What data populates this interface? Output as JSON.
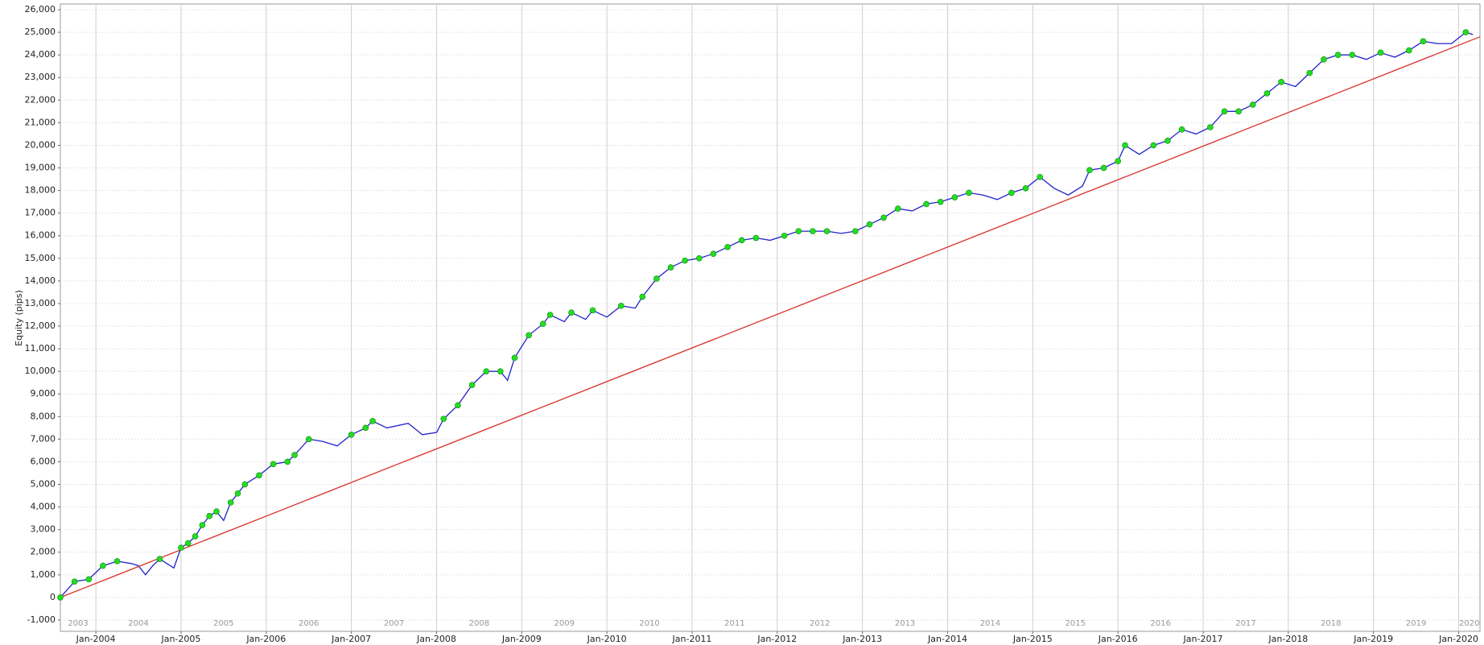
{
  "chart_data": {
    "type": "line",
    "y_label": "Equity (pips)",
    "x": [
      "2003-08",
      "2003-10",
      "2003-12",
      "2004-02",
      "2004-04",
      "2004-06",
      "2004-07",
      "2004-08",
      "2004-09",
      "2004-10",
      "2004-11",
      "2004-12",
      "2005-01",
      "2005-02",
      "2005-03",
      "2005-04",
      "2005-05",
      "2005-06",
      "2005-07",
      "2005-08",
      "2005-09",
      "2005-10",
      "2005-12",
      "2006-02",
      "2006-04",
      "2006-05",
      "2006-07",
      "2006-09",
      "2006-11",
      "2007-01",
      "2007-03",
      "2007-04",
      "2007-06",
      "2007-09",
      "2007-11",
      "2008-01",
      "2008-02",
      "2008-04",
      "2008-06",
      "2008-08",
      "2008-10",
      "2008-11",
      "2008-12",
      "2009-02",
      "2009-04",
      "2009-05",
      "2009-07",
      "2009-08",
      "2009-10",
      "2009-11",
      "2010-01",
      "2010-03",
      "2010-05",
      "2010-06",
      "2010-08",
      "2010-10",
      "2010-12",
      "2011-02",
      "2011-04",
      "2011-06",
      "2011-08",
      "2011-10",
      "2011-12",
      "2012-02",
      "2012-04",
      "2012-06",
      "2012-08",
      "2012-10",
      "2012-12",
      "2013-02",
      "2013-04",
      "2013-06",
      "2013-08",
      "2013-10",
      "2013-12",
      "2014-02",
      "2014-04",
      "2014-06",
      "2014-08",
      "2014-10",
      "2014-12",
      "2015-02",
      "2015-04",
      "2015-06",
      "2015-08",
      "2015-09",
      "2015-11",
      "2016-01",
      "2016-02",
      "2016-04",
      "2016-06",
      "2016-08",
      "2016-10",
      "2016-12",
      "2017-02",
      "2017-04",
      "2017-06",
      "2017-08",
      "2017-10",
      "2017-12",
      "2018-02",
      "2018-04",
      "2018-06",
      "2018-08",
      "2018-10",
      "2018-12",
      "2019-02",
      "2019-04",
      "2019-06",
      "2019-08",
      "2019-10",
      "2019-12",
      "2020-02",
      "2020-03"
    ],
    "series": [
      {
        "color": "#2222cc",
        "values": [
          0,
          700,
          800,
          1400,
          1600,
          1500,
          1400,
          1000,
          1400,
          1700,
          1500,
          1300,
          2200,
          2400,
          2700,
          3200,
          3600,
          3800,
          3400,
          4200,
          4600,
          5000,
          5400,
          5900,
          6000,
          6300,
          7000,
          6900,
          6700,
          7200,
          7500,
          7800,
          7500,
          7700,
          7200,
          7300,
          7900,
          8500,
          9400,
          10000,
          10000,
          9600,
          10600,
          11600,
          12100,
          12500,
          12200,
          12600,
          12300,
          12700,
          12400,
          12900,
          12800,
          13300,
          14100,
          14600,
          14900,
          15000,
          15200,
          15500,
          15800,
          15900,
          15800,
          16000,
          16200,
          16200,
          16200,
          16100,
          16200,
          16500,
          16800,
          17200,
          17100,
          17400,
          17500,
          17700,
          17900,
          17800,
          17600,
          17900,
          18100,
          18600,
          18100,
          17800,
          18200,
          18900,
          19000,
          19300,
          20000,
          19600,
          20000,
          20200,
          20700,
          20500,
          20800,
          21500,
          21500,
          21800,
          22300,
          22800,
          22600,
          23200,
          23800,
          24000,
          24000,
          23800,
          24100,
          23900,
          24200,
          24600,
          24500,
          24500,
          25000,
          24900
        ]
      },
      {
        "color": "#d9342b",
        "x": [
          "2003-08",
          "2020-04"
        ],
        "values": [
          0,
          24800
        ]
      }
    ],
    "marker_color": "#22dd22",
    "xlim": [
      "2003-08",
      "2020-04"
    ],
    "xticks": [
      {
        "value": "2004-01",
        "label": "Jan-2004"
      },
      {
        "value": "2005-01",
        "label": "Jan-2005"
      },
      {
        "value": "2006-01",
        "label": "Jan-2006"
      },
      {
        "value": "2007-01",
        "label": "Jan-2007"
      },
      {
        "value": "2008-01",
        "label": "Jan-2008"
      },
      {
        "value": "2009-01",
        "label": "Jan-2009"
      },
      {
        "value": "2010-01",
        "label": "Jan-2010"
      },
      {
        "value": "2011-01",
        "label": "Jan-2011"
      },
      {
        "value": "2012-01",
        "label": "Jan-2012"
      },
      {
        "value": "2013-01",
        "label": "Jan-2013"
      },
      {
        "value": "2014-01",
        "label": "Jan-2014"
      },
      {
        "value": "2015-01",
        "label": "Jan-2015"
      },
      {
        "value": "2016-01",
        "label": "Jan-2016"
      },
      {
        "value": "2017-01",
        "label": "Jan-2017"
      },
      {
        "value": "2018-01",
        "label": "Jan-2018"
      },
      {
        "value": "2019-01",
        "label": "Jan-2019"
      },
      {
        "value": "2020-01",
        "label": "Jan-2020"
      }
    ],
    "year_labels": [
      "2003",
      "2004",
      "2005",
      "2006",
      "2007",
      "2008",
      "2009",
      "2010",
      "2011",
      "2012",
      "2013",
      "2014",
      "2015",
      "2016",
      "2017",
      "2018",
      "2019",
      "2020"
    ],
    "ylim": [
      -1500,
      26250
    ],
    "yticks": [
      {
        "value": -1000,
        "label": "-1,000"
      },
      0,
      {
        "value": 1000,
        "label": "1,000"
      },
      {
        "value": 2000,
        "label": "2,000"
      },
      {
        "value": 3000,
        "label": "3,000"
      },
      {
        "value": 4000,
        "label": "4,000"
      },
      {
        "value": 5000,
        "label": "5,000"
      },
      {
        "value": 6000,
        "label": "6,000"
      },
      {
        "value": 7000,
        "label": "7,000"
      },
      {
        "value": 8000,
        "label": "8,000"
      },
      {
        "value": 9000,
        "label": "9,000"
      },
      {
        "value": 10000,
        "label": "10,000"
      },
      {
        "value": 11000,
        "label": "11,000"
      },
      {
        "value": 12000,
        "label": "12,000"
      },
      {
        "value": 13000,
        "label": "13,000"
      },
      {
        "value": 14000,
        "label": "14,000"
      },
      {
        "value": 15000,
        "label": "15,000"
      },
      {
        "value": 16000,
        "label": "16,000"
      },
      {
        "value": 17000,
        "label": "17,000"
      },
      {
        "value": 18000,
        "label": "18,000"
      },
      {
        "value": 19000,
        "label": "19,000"
      },
      {
        "value": 20000,
        "label": "20,000"
      },
      {
        "value": 21000,
        "label": "21,000"
      },
      {
        "value": 22000,
        "label": "22,000"
      },
      {
        "value": 23000,
        "label": "23,000"
      },
      {
        "value": 24000,
        "label": "24,000"
      },
      {
        "value": 25000,
        "label": "25,000"
      },
      {
        "value": 26000,
        "label": "26,000"
      }
    ],
    "grid": true
  }
}
